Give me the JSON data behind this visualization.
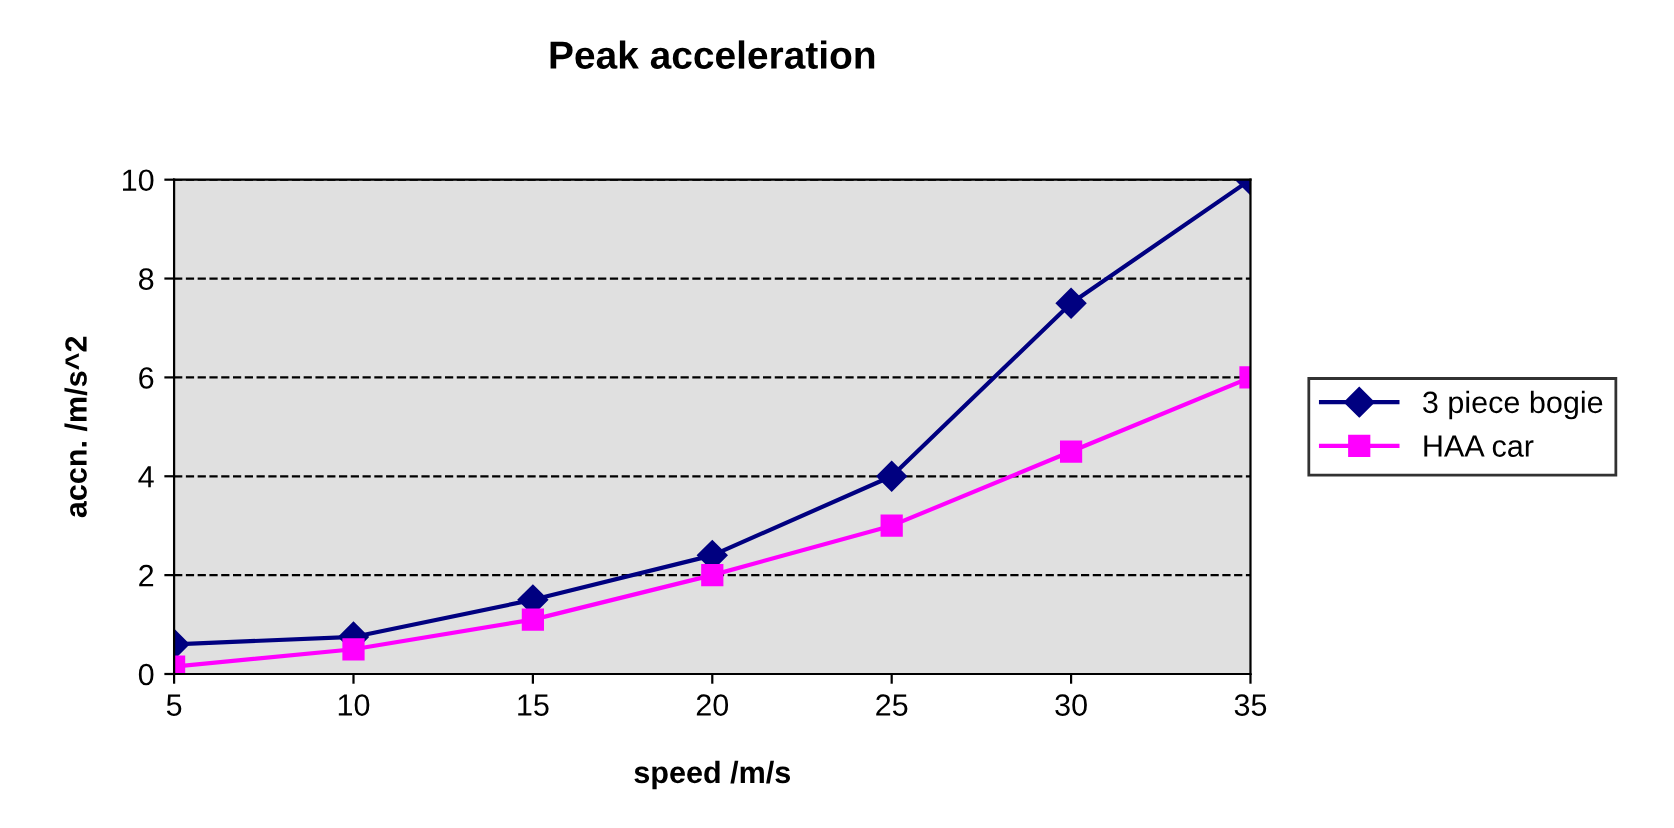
{
  "chart_data": {
    "type": "line",
    "title": "Peak acceleration",
    "xlabel": "speed /m/s",
    "ylabel": "accn. /m/s^2",
    "x": [
      5,
      10,
      15,
      20,
      25,
      30,
      35
    ],
    "series": [
      {
        "name": "3 piece bogie",
        "color": "#000080",
        "marker": "diamond",
        "values": [
          0.6,
          0.75,
          1.5,
          2.4,
          4,
          7.5,
          10
        ]
      },
      {
        "name": "HAA car",
        "color": "#ff00ff",
        "marker": "square",
        "values": [
          0.15,
          0.5,
          1.1,
          2.0,
          3.0,
          4.5,
          6.0
        ]
      }
    ],
    "xlim": [
      5,
      35
    ],
    "xticks": [
      5,
      10,
      15,
      20,
      25,
      30,
      35
    ],
    "ylim": [
      0,
      10
    ],
    "yticks": [
      0,
      2,
      4,
      6,
      8,
      10
    ],
    "grid": "y",
    "legend": "right",
    "line_style": "solid"
  }
}
